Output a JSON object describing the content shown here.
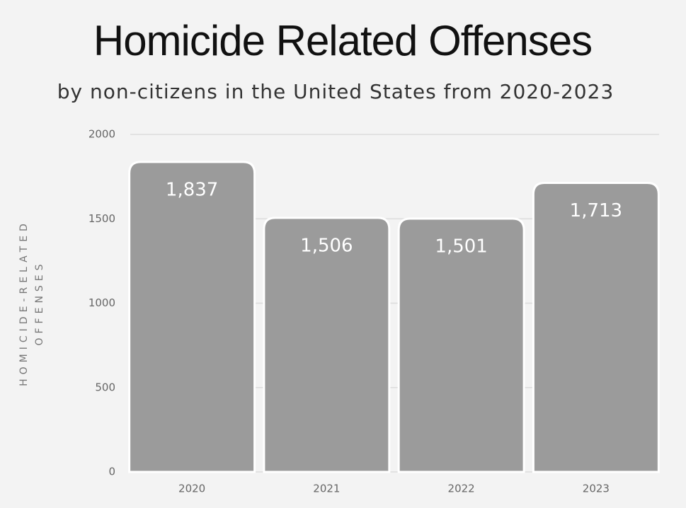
{
  "chart_data": {
    "type": "bar",
    "title": "Homicide Related Offenses",
    "subtitle": "by non-citizens in the United States from 2020-2023",
    "y_label": "HOMICIDE-RELATED OFFENSES",
    "categories": [
      "2020",
      "2021",
      "2022",
      "2023"
    ],
    "values": [
      1837,
      1506,
      1501,
      1713
    ],
    "value_labels": [
      "1,837",
      "1,506",
      "1,501",
      "1,713"
    ],
    "color": "#9b9b9b",
    "ylim": [
      0,
      2000
    ],
    "yticks": [
      0,
      500,
      1000,
      1500,
      2000
    ],
    "grid": true
  }
}
